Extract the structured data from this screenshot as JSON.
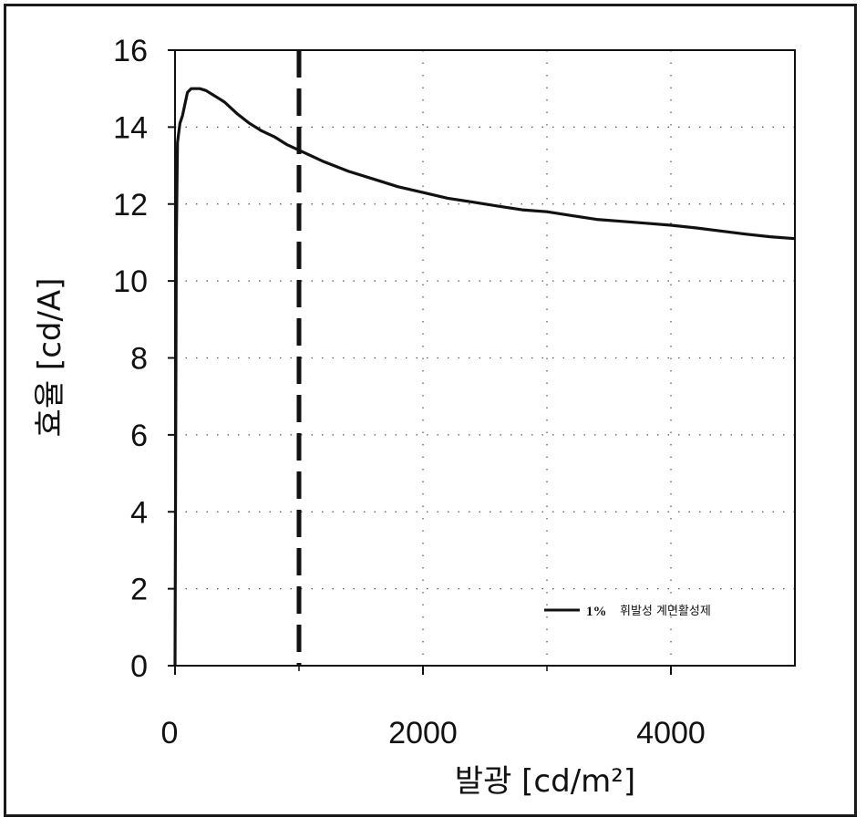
{
  "chart_data": {
    "type": "line",
    "xlabel": "발광  [cd/m²]",
    "ylabel": "효율  [cd/A]",
    "xlim": [
      0,
      5000
    ],
    "ylim": [
      0,
      16
    ],
    "x_ticks": [
      0,
      2000,
      4000
    ],
    "y_ticks": [
      0,
      2,
      4,
      6,
      8,
      10,
      12,
      14,
      16
    ],
    "x_ticks_minor": [
      1000,
      3000
    ],
    "grid": "dotted",
    "reference_line": {
      "style": "dashed",
      "x": 1000
    },
    "legend": {
      "position": "bottom-right",
      "entries": [
        {
          "bold": "1%",
          "text": "휘발성 계면활성제"
        }
      ]
    },
    "series": [
      {
        "name": "1% 휘발성 계면활성제",
        "color": "#111111",
        "x": [
          0,
          10,
          20,
          40,
          60,
          80,
          100,
          130,
          160,
          200,
          250,
          300,
          350,
          400,
          450,
          500,
          600,
          700,
          800,
          900,
          1000,
          1200,
          1400,
          1600,
          1800,
          2000,
          2200,
          2400,
          2600,
          2800,
          3000,
          3200,
          3400,
          3600,
          3800,
          4000,
          4200,
          4400,
          4600,
          4800,
          5000
        ],
        "y": [
          0.0,
          11.0,
          13.6,
          14.1,
          14.3,
          14.6,
          14.9,
          15.0,
          15.0,
          15.0,
          14.95,
          14.85,
          14.75,
          14.65,
          14.5,
          14.35,
          14.1,
          13.9,
          13.75,
          13.55,
          13.4,
          13.1,
          12.85,
          12.65,
          12.45,
          12.3,
          12.15,
          12.05,
          11.95,
          11.85,
          11.8,
          11.7,
          11.6,
          11.55,
          11.5,
          11.45,
          11.38,
          11.3,
          11.22,
          11.15,
          11.1
        ]
      }
    ]
  }
}
